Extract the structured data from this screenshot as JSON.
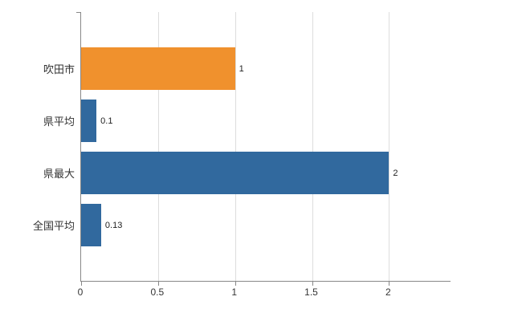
{
  "chart_data": {
    "type": "bar",
    "orientation": "horizontal",
    "title": "",
    "categories": [
      "吹田市",
      "県平均",
      "県最大",
      "全国平均"
    ],
    "values": [
      1,
      0.1,
      2,
      0.13
    ],
    "value_labels": [
      "1",
      "0.1",
      "2",
      "0.13"
    ],
    "bar_colors": [
      "#f0912d",
      "#31699e",
      "#31699e",
      "#31699e"
    ],
    "xlim": [
      0,
      2.4
    ],
    "xticks": [
      0,
      0.5,
      1,
      1.5,
      2
    ],
    "xtick_labels": [
      "0",
      "0.5",
      "1",
      "1.5",
      "2"
    ],
    "grid": true,
    "legend": "none",
    "axis_color": "#888888",
    "grid_color": "#dddddd",
    "label_color": "#333333"
  }
}
